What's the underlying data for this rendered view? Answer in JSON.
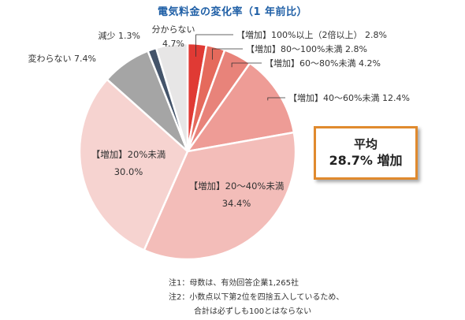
{
  "chart_data": {
    "type": "pie",
    "title": "電気料金の変化率（1 年前比）",
    "slices": [
      {
        "label": "【増加】100%以上（2倍以上）",
        "value": 2.8,
        "display": "2.8%",
        "color": "#e03a34"
      },
      {
        "label": "【増加】80～100%未満",
        "value": 2.8,
        "display": "2.8%",
        "color": "#e56a5c"
      },
      {
        "label": "【増加】60～80%未満",
        "value": 4.2,
        "display": "4.2%",
        "color": "#e8837a"
      },
      {
        "label": "【増加】40～60%未満",
        "value": 12.4,
        "display": "12.4%",
        "color": "#ee9c96"
      },
      {
        "label": "【増加】20～40%未満",
        "value": 34.4,
        "display": "34.4%",
        "color": "#f3bdb9"
      },
      {
        "label": "【増加】20%未満",
        "value": 30.0,
        "display": "30.0%",
        "color": "#f6d3d0"
      },
      {
        "label": "変わらない",
        "value": 7.4,
        "display": "7.4%",
        "color": "#a5a5a5"
      },
      {
        "label": "減少",
        "value": 1.3,
        "display": "1.3%",
        "color": "#44546a"
      },
      {
        "label": "分からない",
        "value": 4.7,
        "display": "4.7%",
        "color": "#e7e6e6"
      }
    ],
    "start": "12 o'clock",
    "direction": "clockwise"
  },
  "average_box": {
    "heading": "平均",
    "value": "28.7%",
    "suffix": "増加"
  },
  "notes": [
    "注1：母数は、有効回答企業1,265社",
    "注2：小数点以下第2位を四捨五入しているため、",
    "合計は必ずしも100とはならない"
  ],
  "colors": {
    "title": "#1f5fa6",
    "avg_border": "#e08a2e"
  }
}
